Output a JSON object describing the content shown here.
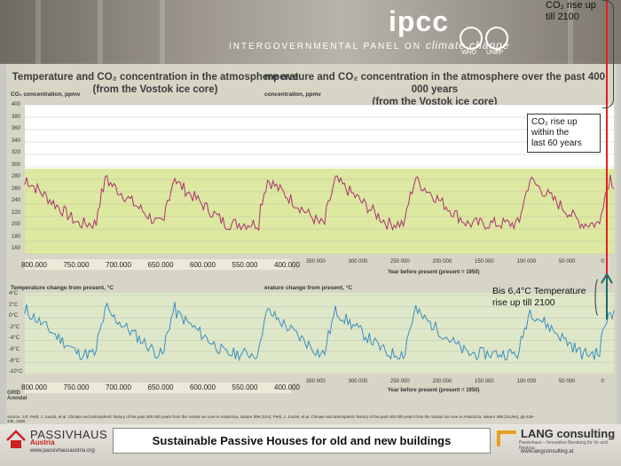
{
  "header": {
    "logo": "ipcc",
    "subtitle_prefix": "INTERGOVERNMENTAL PANEL ON",
    "subtitle_suffix": "climate change",
    "who": "WHO",
    "unep": "UNEP"
  },
  "charts": {
    "title_left_line1": "Temperature and CO₂ concentration in the atmosphere ove",
    "title_left_line2": "(from the Vostok ice core)",
    "title_right_line1": "mperature and CO₂ concentration in the atmosphere over the past 400 000 years",
    "title_right_line2": "(from the Vostok ice core)",
    "co2_axis_label": "CO₂ concentration, ppmv",
    "co2_axis_label_right": "concentration, ppmv",
    "temp_axis_label": "Temperature change from present, °C",
    "temp_axis_label_right": "erature change from present, °C",
    "x_axis_title": "Year before present (present = 1950)",
    "co2_yticks": [
      "400",
      "380",
      "360",
      "340",
      "320",
      "300",
      "280",
      "260",
      "240",
      "220",
      "200",
      "180",
      "160"
    ],
    "temp_yticks": [
      "4°C",
      "2°C",
      "0°C",
      "-2°C",
      "-4°C",
      "-6°C",
      "-8°C",
      "-10°C"
    ],
    "x_left": [
      "800.000",
      "750.000",
      "700.000",
      "650.000",
      "600.000",
      "550.000",
      "400.000"
    ],
    "x_right": [
      "350 000",
      "300 000",
      "250 000",
      "200 000",
      "150 000",
      "100 000",
      "50 000",
      "0"
    ],
    "source": "Source: J.R. Petit, J. Jouzel, et al. Climate and atmospheric history of the past 400 000 years from the Vostok ice core in Antarctica, Nature 399 (3JU), Petit, J. Jouzel, et al. Climate and atmospheric history of the past 400 000 years from the Vostok ice core in Antarctica, Nature 399 (3JUne), pp 429-436, 1999.",
    "credit": "GRID Arendal"
  },
  "callouts": {
    "co2_2100": [
      "CO₂ rise up",
      "till 2100"
    ],
    "co2_60": [
      "CO₂ rise up",
      "within the",
      "last 60 years"
    ],
    "temp_2100": [
      "Bis 6,4°C Temperature",
      "rise up till 2100"
    ]
  },
  "footer": {
    "banner": "Sustainable Passive Houses for old and new buildings",
    "passivhaus_name": "PASSIVHAUS",
    "passivhaus_sub": "Austria",
    "passivhaus_url": "www.passivhausaustria.org",
    "lang_name": "LANG consulting",
    "lang_sub": "Passivhaus – Innovative Beratung für Ihr und Neubau",
    "lang_url": "www.langconsulting.at"
  },
  "colors": {
    "co2_line": "#a8336e",
    "temp_line": "#3a8fbf",
    "band": "#dde8a0",
    "arrow": "#e02020"
  }
}
